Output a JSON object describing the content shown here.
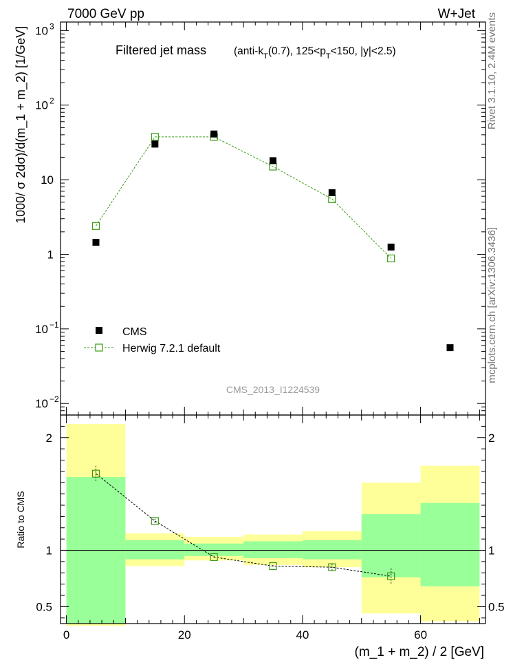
{
  "header": {
    "left": "7000 GeV pp",
    "right": "W+Jet"
  },
  "side_labels": {
    "rivet": "Rivet 3.1.10,  2.4M events",
    "mcplots": "mcplots.cern.ch [arXiv:1306.3436]"
  },
  "colors": {
    "cms": "#000000",
    "herwig": "#3a9a14",
    "band_inner": "#99ff99",
    "band_outer": "#ffff99"
  },
  "chart_data": [
    {
      "type": "scatter",
      "panel": "main",
      "title": "Filtered jet mass",
      "subtitle": "(anti-k_T(0.7), 125<p_T<150, |y|<2.5)",
      "ylabel": "1000/ σ 2dσ)/d(m_1 + m_2) [1/GeV]",
      "xlabel": "",
      "ylog": true,
      "xlim": [
        -1,
        71
      ],
      "ylim": [
        0.007,
        1300
      ],
      "analysis_id": "CMS_2013_I1224539",
      "legend_position": "bottom-left",
      "yticks": [
        {
          "v": 1000,
          "base": "10",
          "exp": "3"
        },
        {
          "v": 100,
          "base": "10",
          "exp": "2"
        },
        {
          "v": 10,
          "base": "10",
          "exp": ""
        },
        {
          "v": 1,
          "base": "1",
          "exp": ""
        },
        {
          "v": 0.1,
          "base": "10",
          "exp": "−1"
        },
        {
          "v": 0.01,
          "base": "10",
          "exp": "−2"
        }
      ],
      "series": [
        {
          "name": "CMS",
          "marker": "filled-square",
          "color": "#000000",
          "x": [
            5,
            15,
            25,
            35,
            45,
            55,
            65
          ],
          "y": [
            1.45,
            30,
            41,
            18,
            6.7,
            1.25,
            0.056
          ]
        },
        {
          "name": "Herwig 7.2.1 default",
          "marker": "open-square-dashed-line",
          "color": "#3a9a14",
          "x": [
            5,
            15,
            25,
            35,
            45,
            55
          ],
          "y": [
            2.4,
            37.5,
            37.5,
            15,
            5.5,
            0.88
          ]
        }
      ]
    },
    {
      "type": "line",
      "panel": "ratio",
      "ylabel": "Ratio to CMS",
      "xlabel": "(m_1 + m_2) / 2 [GeV]",
      "xlim": [
        -1,
        71
      ],
      "ylim": [
        0.35,
        2.2
      ],
      "xticks": [
        0,
        20,
        40,
        60
      ],
      "yticks": [
        {
          "v": 2,
          "label": "2"
        },
        {
          "v": 1,
          "label": "1"
        },
        {
          "v": 0.5,
          "label": "0.5"
        }
      ],
      "bands": [
        {
          "x0": 0,
          "x1": 10,
          "inner": [
            0.35,
            1.65
          ],
          "outer": [
            0.33,
            2.12
          ]
        },
        {
          "x0": 10,
          "x1": 20,
          "inner": [
            0.92,
            1.09
          ],
          "outer": [
            0.86,
            1.15
          ]
        },
        {
          "x0": 20,
          "x1": 30,
          "inner": [
            0.95,
            1.06
          ],
          "outer": [
            0.91,
            1.12
          ]
        },
        {
          "x0": 30,
          "x1": 40,
          "inner": [
            0.93,
            1.08
          ],
          "outer": [
            0.87,
            1.14
          ]
        },
        {
          "x0": 40,
          "x1": 50,
          "inner": [
            0.92,
            1.09
          ],
          "outer": [
            0.85,
            1.17
          ]
        },
        {
          "x0": 50,
          "x1": 60,
          "inner": [
            0.76,
            1.32
          ],
          "outer": [
            0.44,
            1.6
          ]
        },
        {
          "x0": 60,
          "x1": 70,
          "inner": [
            0.68,
            1.42
          ],
          "outer": [
            0.37,
            1.75
          ]
        }
      ],
      "series": [
        {
          "name": "Herwig 7.2.1 default",
          "color": "#3a9a14",
          "x": [
            5,
            15,
            25,
            35,
            45,
            55
          ],
          "y": [
            1.68,
            1.26,
            0.94,
            0.86,
            0.85,
            0.77
          ],
          "err": [
            0.07,
            0.02,
            0.01,
            0.01,
            0.03,
            0.07
          ]
        }
      ]
    }
  ]
}
